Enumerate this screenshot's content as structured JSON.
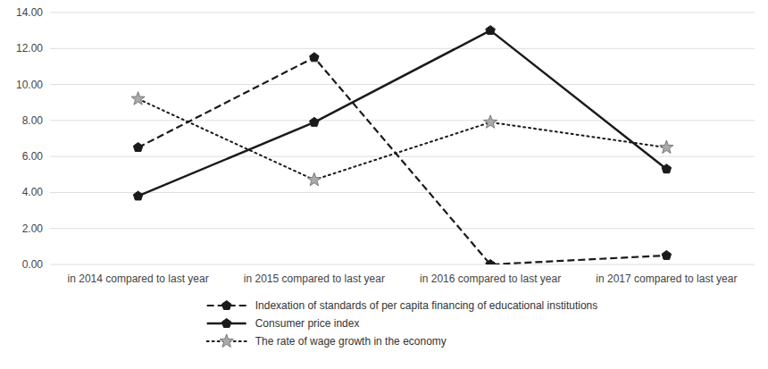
{
  "chart_data": {
    "type": "line",
    "categories": [
      "in 2014 compared to last year",
      "in 2015 compared to last year",
      "in 2016 compared to last year",
      "in 2017 compared to last year"
    ],
    "series": [
      {
        "name": "Indexation of standards of per capita financing of educational institutions",
        "color": "#1a1a1a",
        "values": [
          6.5,
          11.5,
          0.0,
          0.5
        ],
        "marker": "pentagon",
        "line_style": "dashed"
      },
      {
        "name": "Consumer price index",
        "color": "#1a1a1a",
        "values": [
          3.8,
          7.9,
          13.0,
          5.3
        ],
        "marker": "pentagon",
        "line_style": "solid"
      },
      {
        "name": "The rate of wage growth in the economy",
        "color": "#1a1a1a",
        "values": [
          9.2,
          4.7,
          7.9,
          6.5
        ],
        "marker": "star",
        "line_style": "dotted"
      }
    ],
    "ylim": [
      0.0,
      14.0
    ],
    "yticks": [
      {
        "value": 0.0,
        "label": "0.00"
      },
      {
        "value": 2.0,
        "label": "2.00"
      },
      {
        "value": 4.0,
        "label": "4.00"
      },
      {
        "value": 6.0,
        "label": "6.00"
      },
      {
        "value": 8.0,
        "label": "8.00"
      },
      {
        "value": 10.0,
        "label": "10.00"
      },
      {
        "value": 12.0,
        "label": "12.00"
      },
      {
        "value": 14.0,
        "label": "14.00"
      }
    ],
    "grid": true,
    "legend": "bottom"
  }
}
